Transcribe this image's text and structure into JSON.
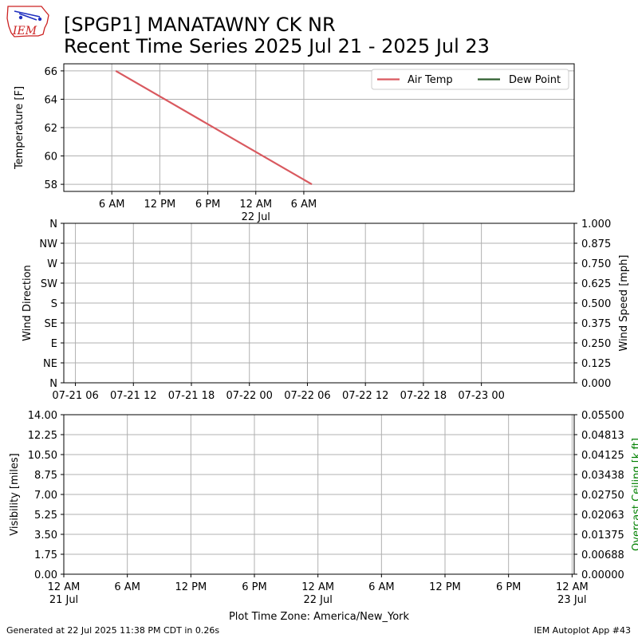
{
  "header": {
    "logo_text": "IEM",
    "title_line1": "[SPGP1] MANATAWNY CK NR",
    "title_line2": "Recent Time Series 2025 Jul 21 - 2025 Jul 23"
  },
  "colors": {
    "air_temp": "#d9595f",
    "dew_point": "#2e5e2e",
    "grid": "#b0b0b0",
    "ceiling_label": "#008000",
    "logo_red": "#cc2222",
    "logo_blue": "#1f2fbf"
  },
  "footer": {
    "generated": "Generated at 22 Jul 2025 11:38 PM CDT in 0.26s",
    "app": "IEM Autoplot App #43"
  },
  "chart_data": [
    {
      "type": "line",
      "ylabel": "Temperature [F]",
      "ylim": [
        57.5,
        66.5
      ],
      "yticks": [
        58,
        60,
        62,
        64,
        66
      ],
      "x_unit": "hours since 2025-07-21 00:00 America/New_York",
      "xlim": [
        0,
        63.8
      ],
      "xticks": [
        {
          "x": 6,
          "label": "6 AM"
        },
        {
          "x": 12,
          "label": "12 PM"
        },
        {
          "x": 18,
          "label": "6 PM"
        },
        {
          "x": 24,
          "label": "12 AM",
          "sub": "22 Jul"
        },
        {
          "x": 30,
          "label": "6 AM"
        }
      ],
      "grid": true,
      "legend": {
        "placement": "top-right",
        "entries": [
          "Air Temp",
          "Dew Point"
        ]
      },
      "series": [
        {
          "name": "Air Temp",
          "color_key": "air_temp",
          "points": [
            [
              6.5,
              66
            ],
            [
              31.0,
              58
            ]
          ]
        },
        {
          "name": "Dew Point",
          "color_key": "dew_point",
          "points": []
        }
      ]
    },
    {
      "type": "line",
      "ylabel": "Wind Direction",
      "ylabel_right": "Wind Speed [mph]",
      "yticks_left": [
        "N",
        "NE",
        "E",
        "SE",
        "S",
        "SW",
        "W",
        "NW",
        "N"
      ],
      "yticks_right": [
        "0.000",
        "0.125",
        "0.250",
        "0.375",
        "0.500",
        "0.625",
        "0.750",
        "0.875",
        "1.000"
      ],
      "ylim_right": [
        0,
        1
      ],
      "xlim": [
        4.8,
        57.6
      ],
      "xticks": [
        {
          "x": 6,
          "label": "07-21 06"
        },
        {
          "x": 12,
          "label": "07-21 12"
        },
        {
          "x": 18,
          "label": "07-21 18"
        },
        {
          "x": 24,
          "label": "07-22 00"
        },
        {
          "x": 30,
          "label": "07-22 06"
        },
        {
          "x": 36,
          "label": "07-22 12"
        },
        {
          "x": 42,
          "label": "07-22 18"
        },
        {
          "x": 48,
          "label": "07-23 00"
        }
      ],
      "grid": true,
      "series": []
    },
    {
      "type": "line",
      "ylabel": "Visibility [miles]",
      "ylabel_right": "Overcast Ceiling [k ft]",
      "ylim": [
        0,
        14
      ],
      "yticks_left": [
        "0.00",
        "1.75",
        "3.50",
        "5.25",
        "7.00",
        "8.75",
        "10.50",
        "12.25",
        "14.00"
      ],
      "ylim_right": [
        0,
        0.055
      ],
      "yticks_right": [
        "0.00000",
        "0.00688",
        "0.01375",
        "0.02063",
        "0.02750",
        "0.03438",
        "0.04125",
        "0.04813",
        "0.05500"
      ],
      "xlim": [
        0,
        48.2
      ],
      "xticks": [
        {
          "x": 0,
          "label": "12 AM",
          "sub": "21 Jul"
        },
        {
          "x": 6,
          "label": "6 AM"
        },
        {
          "x": 12,
          "label": "12 PM"
        },
        {
          "x": 18,
          "label": "6 PM"
        },
        {
          "x": 24,
          "label": "12 AM",
          "sub": "22 Jul"
        },
        {
          "x": 30,
          "label": "6 AM"
        },
        {
          "x": 36,
          "label": "12 PM"
        },
        {
          "x": 42,
          "label": "6 PM"
        },
        {
          "x": 48,
          "label": "12 AM",
          "sub": "23 Jul"
        }
      ],
      "xlabel": "Plot Time Zone: America/New_York",
      "grid": true,
      "series": []
    }
  ]
}
